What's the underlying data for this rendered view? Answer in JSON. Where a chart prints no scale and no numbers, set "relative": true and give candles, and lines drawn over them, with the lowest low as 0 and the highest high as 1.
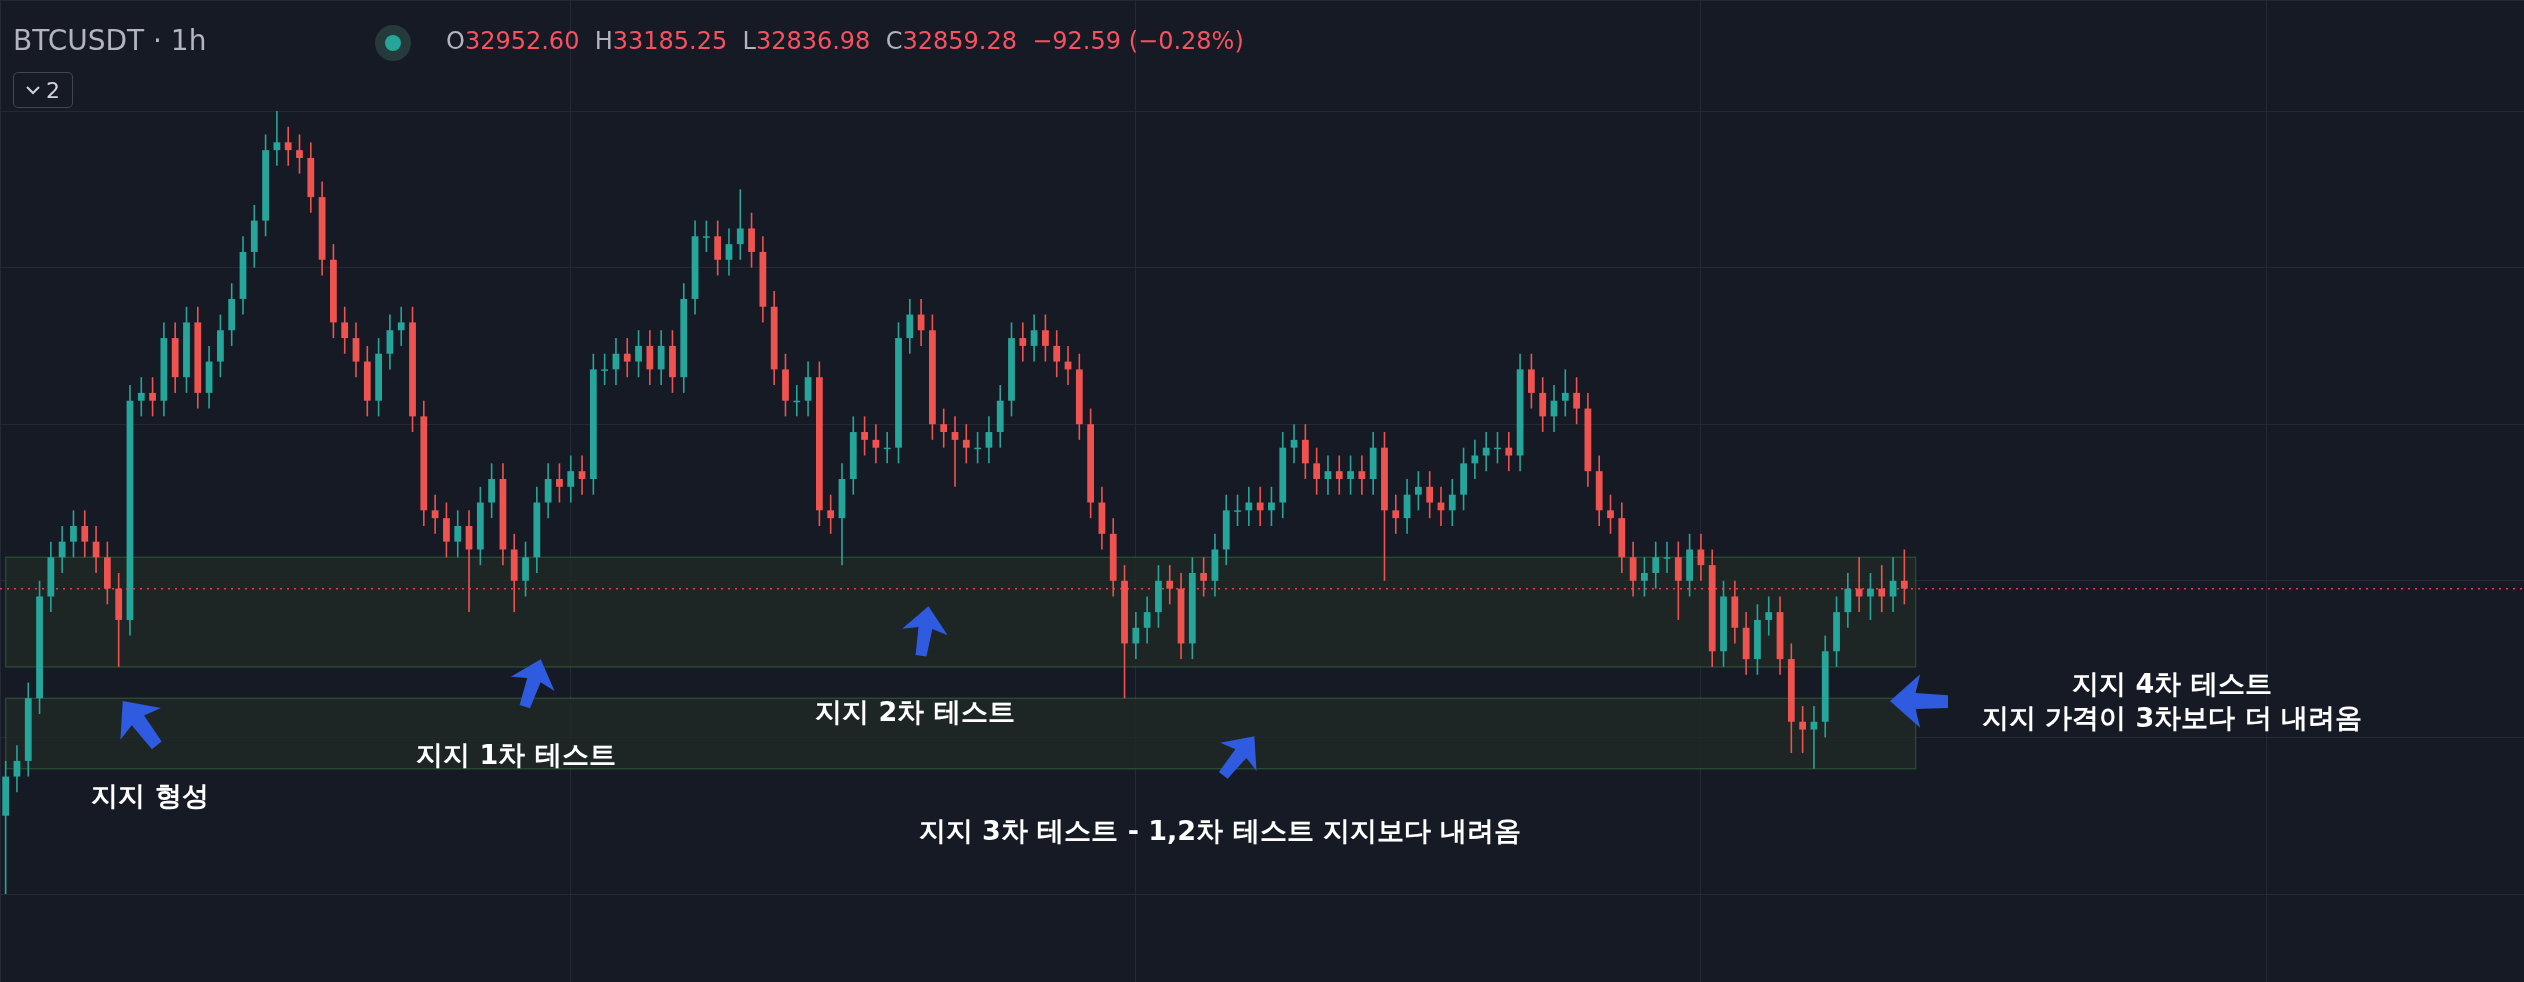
{
  "chart_data": {
    "type": "candlestick",
    "title": "BTCUSDT · 1h",
    "subtitle": "O32952.60 H33185.25 L32836.98 C32859.28 −92.59 (−0.28%)",
    "relative": true,
    "grid": true,
    "colors": [
      "#26a69a",
      "#26a69a",
      "#26a69a",
      "#26a69a",
      "#26a69a",
      "#26a69a",
      "#26a69a",
      "#ef5350",
      "#ef5350",
      "#ef5350",
      "#ef5350",
      "#26a69a",
      "#26a69a",
      "#ef5350",
      "#26a69a",
      "#ef5350",
      "#26a69a",
      "#ef5350",
      "#26a69a",
      "#26a69a",
      "#26a69a",
      "#26a69a",
      "#26a69a",
      "#26a69a",
      "#26a69a",
      "#ef5350",
      "#ef5350",
      "#ef5350",
      "#ef5350",
      "#ef5350",
      "#ef5350",
      "#ef5350",
      "#ef5350",
      "#26a69a",
      "#26a69a",
      "#26a69a",
      "#ef5350",
      "#ef5350",
      "#ef5350",
      "#ef5350",
      "#26a69a",
      "#ef5350",
      "#26a69a",
      "#26a69a",
      "#ef5350",
      "#ef5350",
      "#26a69a",
      "#26a69a",
      "#26a69a",
      "#ef5350",
      "#26a69a",
      "#ef5350",
      "#26a69a",
      "#26a69a",
      "#26a69a",
      "#ef5350",
      "#26a69a",
      "#ef5350",
      "#26a69a",
      "#ef5350",
      "#26a69a",
      "#26a69a",
      "#26a69a",
      "#ef5350",
      "#26a69a",
      "#26a69a",
      "#ef5350",
      "#ef5350",
      "#ef5350",
      "#ef5350",
      "#26a69a",
      "#26a69a",
      "#ef5350",
      "#ef5350",
      "#26a69a",
      "#26a69a",
      "#ef5350",
      "#ef5350",
      "#26a69a",
      "#26a69a",
      "#26a69a",
      "#ef5350",
      "#ef5350",
      "#ef5350",
      "#ef5350",
      "#ef5350",
      "#26a69a",
      "#26a69a",
      "#26a69a",
      "#26a69a",
      "#ef5350",
      "#26a69a",
      "#ef5350",
      "#ef5350",
      "#ef5350",
      "#ef5350",
      "#ef5350",
      "#ef5350",
      "#ef5350",
      "#ef5350",
      "#26a69a",
      "#26a69a",
      "#26a69a",
      "#ef5350",
      "#ef5350",
      "#26a69a",
      "#ef5350",
      "#26a69a",
      "#26a69a",
      "#26a69a",
      "#26a69a",
      "#ef5350",
      "#26a69a",
      "#26a69a",
      "#26a69a",
      "#ef5350",
      "#ef5350",
      "#26a69a",
      "#ef5350",
      "#26a69a",
      "#ef5350",
      "#26a69a",
      "#ef5350",
      "#ef5350",
      "#26a69a",
      "#26a69a",
      "#ef5350",
      "#ef5350",
      "#26a69a",
      "#26a69a",
      "#26a69a",
      "#26a69a",
      "#26a69a",
      "#ef5350",
      "#26a69a",
      "#ef5350",
      "#ef5350",
      "#26a69a",
      "#26a69a",
      "#ef5350",
      "#ef5350",
      "#ef5350",
      "#ef5350",
      "#ef5350",
      "#ef5350",
      "#26a69a",
      "#26a69a",
      "#26a69a",
      "#ef5350",
      "#26a69a",
      "#ef5350",
      "#ef5350",
      "#26a69a",
      "#ef5350",
      "#ef5350",
      "#26a69a",
      "#26a69a",
      "#ef5350",
      "#ef5350",
      "#ef5350",
      "#26a69a",
      "#26a69a",
      "#26a69a",
      "#26a69a",
      "#ef5350",
      "#26a69a",
      "#ef5350",
      "#26a69a",
      "#ef5350"
    ],
    "annotations": [
      "2",
      "지지 형성",
      "지지 1차 테스트",
      "지지 2차 테스트",
      "지지 3차 테스트 - 1,2차 테스트 지지보다 내려옴",
      "지지 4차 테스트\n지지 가격이 3차보다 더 내려옴"
    ],
    "bands": [
      {
        "axis": "y",
        "from": 0.29,
        "to": 0.43,
        "color": "#1e2925"
      },
      {
        "axis": "y",
        "from": 0.16,
        "to": 0.25,
        "color": "#1e2925"
      }
    ],
    "ref_lines": [
      {
        "axis": "y",
        "value": 0.39,
        "color": "#f23645",
        "line_style": "dotted"
      }
    ],
    "categories": [
      null,
      null,
      null,
      null,
      null,
      null,
      null,
      null,
      null,
      null,
      null,
      null,
      null,
      null,
      null,
      null,
      null,
      null,
      null,
      null,
      null,
      null,
      null,
      null,
      null,
      null,
      null,
      null,
      null,
      null,
      null,
      null,
      null,
      null,
      null,
      null,
      null,
      null,
      null,
      null,
      null,
      null,
      null,
      null,
      null,
      null,
      null,
      null,
      null,
      null,
      null,
      null,
      null,
      null,
      null,
      null,
      null,
      null,
      null,
      null,
      null,
      null,
      null,
      null,
      null,
      null,
      null,
      null,
      null,
      null,
      null,
      null,
      null,
      null,
      null,
      null,
      null,
      null,
      null,
      null,
      null,
      null,
      null,
      null,
      null,
      null,
      null,
      null,
      null,
      null,
      null,
      null,
      null,
      null,
      null,
      null,
      null,
      null,
      null,
      null,
      null,
      null,
      null,
      null,
      null,
      null,
      null,
      null,
      null,
      null,
      null,
      null,
      null,
      null,
      null,
      null,
      null,
      null,
      null,
      null,
      null,
      null,
      null,
      null,
      null,
      null,
      null,
      null,
      null,
      null,
      null,
      null,
      null,
      null,
      null,
      null,
      null,
      null,
      null,
      null,
      null,
      null,
      null,
      null,
      null,
      null,
      null,
      null,
      null,
      null,
      null,
      null,
      null,
      null,
      null,
      null,
      null,
      null,
      null,
      null,
      null,
      null,
      null,
      null,
      null,
      null,
      null,
      null,
      null
    ],
    "ohlc": [
      [
        0.1,
        0.17,
        0.0,
        0.15
      ],
      [
        0.15,
        0.19,
        0.13,
        0.17
      ],
      [
        0.17,
        0.27,
        0.15,
        0.25
      ],
      [
        0.25,
        0.4,
        0.23,
        0.38
      ],
      [
        0.38,
        0.45,
        0.36,
        0.43
      ],
      [
        0.43,
        0.47,
        0.41,
        0.45
      ],
      [
        0.45,
        0.49,
        0.43,
        0.47
      ],
      [
        0.47,
        0.49,
        0.43,
        0.45
      ],
      [
        0.45,
        0.47,
        0.41,
        0.43
      ],
      [
        0.43,
        0.45,
        0.37,
        0.39
      ],
      [
        0.39,
        0.41,
        0.29,
        0.35
      ],
      [
        0.35,
        0.65,
        0.33,
        0.63
      ],
      [
        0.63,
        0.66,
        0.61,
        0.64
      ],
      [
        0.64,
        0.66,
        0.61,
        0.63
      ],
      [
        0.63,
        0.73,
        0.61,
        0.71
      ],
      [
        0.71,
        0.73,
        0.64,
        0.66
      ],
      [
        0.66,
        0.75,
        0.64,
        0.73
      ],
      [
        0.73,
        0.75,
        0.62,
        0.64
      ],
      [
        0.64,
        0.7,
        0.62,
        0.68
      ],
      [
        0.68,
        0.74,
        0.66,
        0.72
      ],
      [
        0.72,
        0.78,
        0.7,
        0.76
      ],
      [
        0.76,
        0.84,
        0.74,
        0.82
      ],
      [
        0.82,
        0.88,
        0.8,
        0.86
      ],
      [
        0.86,
        0.97,
        0.84,
        0.95
      ],
      [
        0.95,
        1.0,
        0.93,
        0.96
      ],
      [
        0.96,
        0.98,
        0.93,
        0.95
      ],
      [
        0.95,
        0.97,
        0.92,
        0.94
      ],
      [
        0.94,
        0.96,
        0.87,
        0.89
      ],
      [
        0.89,
        0.91,
        0.79,
        0.81
      ],
      [
        0.81,
        0.83,
        0.71,
        0.73
      ],
      [
        0.73,
        0.75,
        0.69,
        0.71
      ],
      [
        0.71,
        0.73,
        0.66,
        0.68
      ],
      [
        0.68,
        0.7,
        0.61,
        0.63
      ],
      [
        0.63,
        0.71,
        0.61,
        0.69
      ],
      [
        0.69,
        0.74,
        0.67,
        0.72
      ],
      [
        0.72,
        0.75,
        0.7,
        0.73
      ],
      [
        0.73,
        0.75,
        0.59,
        0.61
      ],
      [
        0.61,
        0.63,
        0.47,
        0.49
      ],
      [
        0.49,
        0.51,
        0.46,
        0.48
      ],
      [
        0.48,
        0.5,
        0.43,
        0.45
      ],
      [
        0.45,
        0.49,
        0.43,
        0.47
      ],
      [
        0.47,
        0.49,
        0.36,
        0.44
      ],
      [
        0.44,
        0.52,
        0.42,
        0.5
      ],
      [
        0.5,
        0.55,
        0.48,
        0.53
      ],
      [
        0.53,
        0.55,
        0.42,
        0.44
      ],
      [
        0.44,
        0.46,
        0.36,
        0.4
      ],
      [
        0.4,
        0.45,
        0.38,
        0.43
      ],
      [
        0.43,
        0.52,
        0.41,
        0.5
      ],
      [
        0.5,
        0.55,
        0.48,
        0.53
      ],
      [
        0.53,
        0.55,
        0.5,
        0.52
      ],
      [
        0.52,
        0.56,
        0.5,
        0.54
      ],
      [
        0.54,
        0.56,
        0.51,
        0.53
      ],
      [
        0.53,
        0.69,
        0.51,
        0.67
      ],
      [
        0.67,
        0.69,
        0.65,
        0.67
      ],
      [
        0.67,
        0.71,
        0.65,
        0.69
      ],
      [
        0.69,
        0.71,
        0.66,
        0.68
      ],
      [
        0.68,
        0.72,
        0.66,
        0.7
      ],
      [
        0.7,
        0.72,
        0.65,
        0.67
      ],
      [
        0.67,
        0.72,
        0.65,
        0.7
      ],
      [
        0.7,
        0.72,
        0.64,
        0.66
      ],
      [
        0.66,
        0.78,
        0.64,
        0.76
      ],
      [
        0.76,
        0.86,
        0.74,
        0.84
      ],
      [
        0.84,
        0.86,
        0.82,
        0.84
      ],
      [
        0.84,
        0.86,
        0.79,
        0.81
      ],
      [
        0.81,
        0.85,
        0.79,
        0.83
      ],
      [
        0.83,
        0.9,
        0.81,
        0.85
      ],
      [
        0.85,
        0.87,
        0.8,
        0.82
      ],
      [
        0.82,
        0.84,
        0.73,
        0.75
      ],
      [
        0.75,
        0.77,
        0.65,
        0.67
      ],
      [
        0.67,
        0.69,
        0.61,
        0.63
      ],
      [
        0.63,
        0.65,
        0.61,
        0.63
      ],
      [
        0.63,
        0.68,
        0.61,
        0.66
      ],
      [
        0.66,
        0.68,
        0.47,
        0.49
      ],
      [
        0.49,
        0.51,
        0.46,
        0.48
      ],
      [
        0.48,
        0.55,
        0.42,
        0.53
      ],
      [
        0.53,
        0.61,
        0.51,
        0.59
      ],
      [
        0.59,
        0.61,
        0.56,
        0.58
      ],
      [
        0.58,
        0.6,
        0.55,
        0.57
      ],
      [
        0.57,
        0.59,
        0.55,
        0.57
      ],
      [
        0.57,
        0.73,
        0.55,
        0.71
      ],
      [
        0.71,
        0.76,
        0.69,
        0.74
      ],
      [
        0.74,
        0.76,
        0.7,
        0.72
      ],
      [
        0.72,
        0.74,
        0.58,
        0.6
      ],
      [
        0.6,
        0.62,
        0.57,
        0.59
      ],
      [
        0.59,
        0.61,
        0.52,
        0.58
      ],
      [
        0.58,
        0.6,
        0.55,
        0.57
      ],
      [
        0.57,
        0.59,
        0.55,
        0.57
      ],
      [
        0.57,
        0.61,
        0.55,
        0.59
      ],
      [
        0.59,
        0.65,
        0.57,
        0.63
      ],
      [
        0.63,
        0.73,
        0.61,
        0.71
      ],
      [
        0.71,
        0.73,
        0.68,
        0.7
      ],
      [
        0.7,
        0.74,
        0.68,
        0.72
      ],
      [
        0.72,
        0.74,
        0.68,
        0.7
      ],
      [
        0.7,
        0.72,
        0.66,
        0.68
      ],
      [
        0.68,
        0.7,
        0.65,
        0.67
      ],
      [
        0.67,
        0.69,
        0.58,
        0.6
      ],
      [
        0.6,
        0.62,
        0.48,
        0.5
      ],
      [
        0.5,
        0.52,
        0.44,
        0.46
      ],
      [
        0.46,
        0.48,
        0.38,
        0.4
      ],
      [
        0.4,
        0.42,
        0.25,
        0.32
      ],
      [
        0.32,
        0.36,
        0.3,
        0.34
      ],
      [
        0.34,
        0.38,
        0.32,
        0.36
      ],
      [
        0.36,
        0.42,
        0.34,
        0.4
      ],
      [
        0.4,
        0.42,
        0.37,
        0.39
      ],
      [
        0.39,
        0.41,
        0.3,
        0.32
      ],
      [
        0.32,
        0.43,
        0.3,
        0.41
      ],
      [
        0.41,
        0.43,
        0.38,
        0.4
      ],
      [
        0.4,
        0.46,
        0.38,
        0.44
      ],
      [
        0.44,
        0.51,
        0.42,
        0.49
      ],
      [
        0.49,
        0.51,
        0.47,
        0.49
      ],
      [
        0.49,
        0.52,
        0.47,
        0.5
      ],
      [
        0.5,
        0.52,
        0.47,
        0.49
      ],
      [
        0.49,
        0.52,
        0.47,
        0.5
      ],
      [
        0.5,
        0.59,
        0.48,
        0.57
      ],
      [
        0.57,
        0.6,
        0.55,
        0.58
      ],
      [
        0.58,
        0.6,
        0.53,
        0.55
      ],
      [
        0.55,
        0.57,
        0.51,
        0.53
      ],
      [
        0.53,
        0.56,
        0.51,
        0.54
      ],
      [
        0.54,
        0.56,
        0.51,
        0.53
      ],
      [
        0.53,
        0.56,
        0.51,
        0.54
      ],
      [
        0.54,
        0.56,
        0.51,
        0.53
      ],
      [
        0.53,
        0.59,
        0.51,
        0.57
      ],
      [
        0.57,
        0.59,
        0.4,
        0.49
      ],
      [
        0.49,
        0.51,
        0.46,
        0.48
      ],
      [
        0.48,
        0.53,
        0.46,
        0.51
      ],
      [
        0.51,
        0.54,
        0.49,
        0.52
      ],
      [
        0.52,
        0.54,
        0.48,
        0.5
      ],
      [
        0.5,
        0.52,
        0.47,
        0.49
      ],
      [
        0.49,
        0.53,
        0.47,
        0.51
      ],
      [
        0.51,
        0.57,
        0.49,
        0.55
      ],
      [
        0.55,
        0.58,
        0.53,
        0.56
      ],
      [
        0.56,
        0.59,
        0.54,
        0.57
      ],
      [
        0.57,
        0.59,
        0.55,
        0.57
      ],
      [
        0.57,
        0.59,
        0.54,
        0.56
      ],
      [
        0.56,
        0.69,
        0.54,
        0.67
      ],
      [
        0.67,
        0.69,
        0.62,
        0.64
      ],
      [
        0.64,
        0.66,
        0.59,
        0.61
      ],
      [
        0.61,
        0.65,
        0.59,
        0.63
      ],
      [
        0.63,
        0.67,
        0.61,
        0.64
      ],
      [
        0.64,
        0.66,
        0.6,
        0.62
      ],
      [
        0.62,
        0.64,
        0.52,
        0.54
      ],
      [
        0.54,
        0.56,
        0.47,
        0.49
      ],
      [
        0.49,
        0.51,
        0.46,
        0.48
      ],
      [
        0.48,
        0.5,
        0.41,
        0.43
      ],
      [
        0.43,
        0.45,
        0.38,
        0.4
      ],
      [
        0.4,
        0.43,
        0.38,
        0.41
      ],
      [
        0.41,
        0.45,
        0.39,
        0.43
      ],
      [
        0.43,
        0.45,
        0.41,
        0.43
      ],
      [
        0.43,
        0.45,
        0.35,
        0.4
      ],
      [
        0.4,
        0.46,
        0.38,
        0.44
      ],
      [
        0.44,
        0.46,
        0.4,
        0.42
      ],
      [
        0.42,
        0.44,
        0.29,
        0.31
      ],
      [
        0.31,
        0.4,
        0.29,
        0.38
      ],
      [
        0.38,
        0.4,
        0.32,
        0.34
      ],
      [
        0.34,
        0.36,
        0.28,
        0.3
      ],
      [
        0.3,
        0.37,
        0.28,
        0.35
      ],
      [
        0.35,
        0.38,
        0.33,
        0.36
      ],
      [
        0.36,
        0.38,
        0.28,
        0.3
      ],
      [
        0.3,
        0.32,
        0.18,
        0.22
      ],
      [
        0.22,
        0.24,
        0.18,
        0.21
      ],
      [
        0.21,
        0.24,
        0.16,
        0.22
      ],
      [
        0.22,
        0.33,
        0.2,
        0.31
      ],
      [
        0.31,
        0.38,
        0.29,
        0.36
      ],
      [
        0.36,
        0.41,
        0.34,
        0.39
      ],
      [
        0.39,
        0.43,
        0.36,
        0.38
      ],
      [
        0.38,
        0.41,
        0.35,
        0.39
      ],
      [
        0.39,
        0.42,
        0.36,
        0.38
      ],
      [
        0.38,
        0.43,
        0.36,
        0.4
      ],
      [
        0.4,
        0.44,
        0.37,
        0.39
      ]
    ]
  }
}
